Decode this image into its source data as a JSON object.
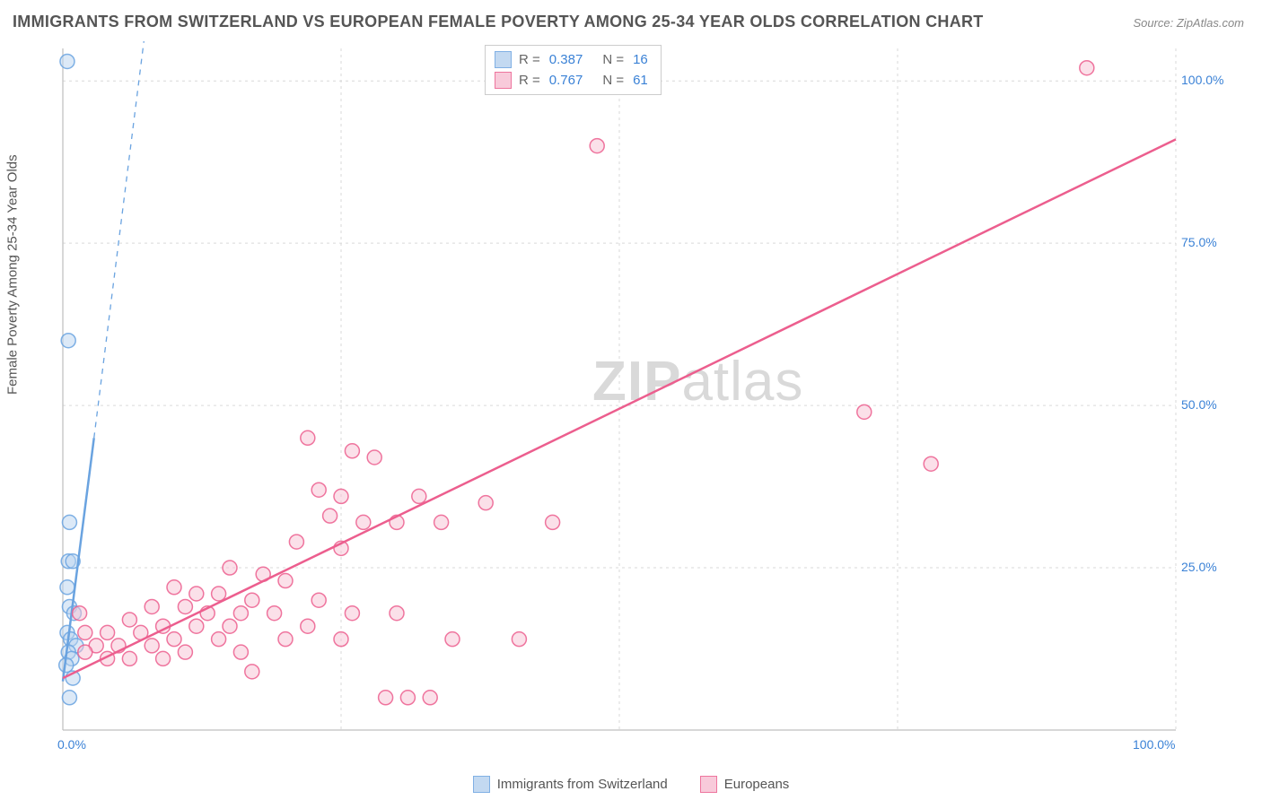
{
  "title": "IMMIGRANTS FROM SWITZERLAND VS EUROPEAN FEMALE POVERTY AMONG 25-34 YEAR OLDS CORRELATION CHART",
  "source": "Source: ZipAtlas.com",
  "y_axis_label": "Female Poverty Among 25-34 Year Olds",
  "watermark_bold": "ZIP",
  "watermark_light": "atlas",
  "chart": {
    "type": "scatter",
    "xlim": [
      0,
      100
    ],
    "ylim": [
      0,
      105
    ],
    "x_ticks": [
      {
        "v": 0,
        "label": "0.0%"
      },
      {
        "v": 100,
        "label": "100.0%"
      }
    ],
    "y_ticks": [
      {
        "v": 25,
        "label": "25.0%"
      },
      {
        "v": 50,
        "label": "50.0%"
      },
      {
        "v": 75,
        "label": "75.0%"
      },
      {
        "v": 100,
        "label": "100.0%"
      }
    ],
    "grid_color": "#d9d9d9",
    "axis_color": "#bfbfbf",
    "background_color": "#ffffff",
    "marker_radius": 8,
    "marker_stroke_width": 1.5,
    "marker_fill_opacity": 0.15,
    "series": [
      {
        "id": "swiss",
        "label": "Immigrants from Switzerland",
        "color": "#6aa3e0",
        "fill": "#b9d3ef",
        "r": 0.387,
        "n": 16,
        "trend": {
          "x1": 0,
          "y1": 7.5,
          "x2": 2.8,
          "y2": 45,
          "dash_to_x": 10.5,
          "dash_to_y": 150,
          "width": 2.5
        },
        "points": [
          {
            "x": 0.4,
            "y": 103
          },
          {
            "x": 0.5,
            "y": 60
          },
          {
            "x": 0.6,
            "y": 32
          },
          {
            "x": 0.5,
            "y": 26
          },
          {
            "x": 0.9,
            "y": 26
          },
          {
            "x": 0.4,
            "y": 22
          },
          {
            "x": 0.6,
            "y": 19
          },
          {
            "x": 1.0,
            "y": 18
          },
          {
            "x": 0.4,
            "y": 15
          },
          {
            "x": 0.7,
            "y": 14
          },
          {
            "x": 1.2,
            "y": 13
          },
          {
            "x": 0.5,
            "y": 12
          },
          {
            "x": 0.8,
            "y": 11
          },
          {
            "x": 0.3,
            "y": 10
          },
          {
            "x": 0.9,
            "y": 8
          },
          {
            "x": 0.6,
            "y": 5
          }
        ]
      },
      {
        "id": "euro",
        "label": "Europeans",
        "color": "#ec5e8e",
        "fill": "#f7c1d4",
        "r": 0.767,
        "n": 61,
        "trend": {
          "x1": 0,
          "y1": 8,
          "x2": 100,
          "y2": 91,
          "width": 2.5
        },
        "points": [
          {
            "x": 92,
            "y": 102
          },
          {
            "x": 48,
            "y": 90
          },
          {
            "x": 72,
            "y": 49
          },
          {
            "x": 78,
            "y": 41
          },
          {
            "x": 22,
            "y": 45
          },
          {
            "x": 26,
            "y": 43
          },
          {
            "x": 28,
            "y": 42
          },
          {
            "x": 23,
            "y": 37
          },
          {
            "x": 25,
            "y": 36
          },
          {
            "x": 32,
            "y": 36
          },
          {
            "x": 38,
            "y": 35
          },
          {
            "x": 24,
            "y": 33
          },
          {
            "x": 27,
            "y": 32
          },
          {
            "x": 30,
            "y": 32
          },
          {
            "x": 34,
            "y": 32
          },
          {
            "x": 44,
            "y": 32
          },
          {
            "x": 21,
            "y": 29
          },
          {
            "x": 25,
            "y": 28
          },
          {
            "x": 15,
            "y": 25
          },
          {
            "x": 18,
            "y": 24
          },
          {
            "x": 20,
            "y": 23
          },
          {
            "x": 10,
            "y": 22
          },
          {
            "x": 12,
            "y": 21
          },
          {
            "x": 14,
            "y": 21
          },
          {
            "x": 17,
            "y": 20
          },
          {
            "x": 23,
            "y": 20
          },
          {
            "x": 8,
            "y": 19
          },
          {
            "x": 11,
            "y": 19
          },
          {
            "x": 13,
            "y": 18
          },
          {
            "x": 16,
            "y": 18
          },
          {
            "x": 19,
            "y": 18
          },
          {
            "x": 26,
            "y": 18
          },
          {
            "x": 30,
            "y": 18
          },
          {
            "x": 6,
            "y": 17
          },
          {
            "x": 9,
            "y": 16
          },
          {
            "x": 12,
            "y": 16
          },
          {
            "x": 15,
            "y": 16
          },
          {
            "x": 22,
            "y": 16
          },
          {
            "x": 4,
            "y": 15
          },
          {
            "x": 7,
            "y": 15
          },
          {
            "x": 10,
            "y": 14
          },
          {
            "x": 14,
            "y": 14
          },
          {
            "x": 20,
            "y": 14
          },
          {
            "x": 25,
            "y": 14
          },
          {
            "x": 35,
            "y": 14
          },
          {
            "x": 41,
            "y": 14
          },
          {
            "x": 3,
            "y": 13
          },
          {
            "x": 5,
            "y": 13
          },
          {
            "x": 8,
            "y": 13
          },
          {
            "x": 11,
            "y": 12
          },
          {
            "x": 16,
            "y": 12
          },
          {
            "x": 2,
            "y": 12
          },
          {
            "x": 4,
            "y": 11
          },
          {
            "x": 6,
            "y": 11
          },
          {
            "x": 9,
            "y": 11
          },
          {
            "x": 17,
            "y": 9
          },
          {
            "x": 29,
            "y": 5
          },
          {
            "x": 31,
            "y": 5
          },
          {
            "x": 33,
            "y": 5
          },
          {
            "x": 1.5,
            "y": 18
          },
          {
            "x": 2,
            "y": 15
          }
        ]
      }
    ]
  },
  "legend_x": [
    {
      "series": "swiss"
    },
    {
      "series": "euro"
    }
  ]
}
